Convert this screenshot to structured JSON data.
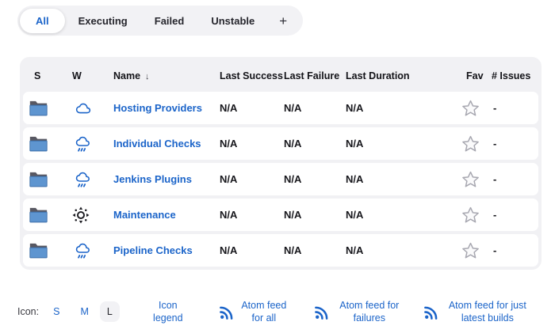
{
  "tabs": {
    "items": [
      {
        "label": "All",
        "active": true
      },
      {
        "label": "Executing",
        "active": false
      },
      {
        "label": "Failed",
        "active": false
      },
      {
        "label": "Unstable",
        "active": false
      }
    ],
    "add_label": "+"
  },
  "table": {
    "columns": [
      "S",
      "W",
      "Name",
      "Last Success",
      "Last Failure",
      "Last Duration",
      "Fav",
      "# Issues"
    ],
    "sort_indicator": "↓",
    "rows": [
      {
        "status": "folder",
        "weather": "cloud",
        "name": "Hosting Providers",
        "last_success": "N/A",
        "last_failure": "N/A",
        "last_duration": "N/A",
        "fav": "star-outline",
        "issues": "-"
      },
      {
        "status": "folder",
        "weather": "rain",
        "name": "Individual Checks",
        "last_success": "N/A",
        "last_failure": "N/A",
        "last_duration": "N/A",
        "fav": "star-outline",
        "issues": "-"
      },
      {
        "status": "folder",
        "weather": "rain",
        "name": "Jenkins Plugins",
        "last_success": "N/A",
        "last_failure": "N/A",
        "last_duration": "N/A",
        "fav": "star-outline",
        "issues": "-"
      },
      {
        "status": "folder",
        "weather": "sun",
        "name": "Maintenance",
        "last_success": "N/A",
        "last_failure": "N/A",
        "last_duration": "N/A",
        "fav": "star-outline",
        "issues": "-"
      },
      {
        "status": "folder",
        "weather": "rain",
        "name": "Pipeline Checks",
        "last_success": "N/A",
        "last_failure": "N/A",
        "last_duration": "N/A",
        "fav": "star-outline",
        "issues": "-"
      }
    ]
  },
  "footer": {
    "icon_size_label": "Icon:",
    "sizes": [
      {
        "label": "S",
        "active": false
      },
      {
        "label": "M",
        "active": false
      },
      {
        "label": "L",
        "active": true
      }
    ],
    "legend_label": "Icon legend",
    "feeds": [
      {
        "label": "Atom feed for all"
      },
      {
        "label": "Atom feed for failures"
      },
      {
        "label": "Atom feed for just latest builds"
      }
    ]
  },
  "colors": {
    "link_blue": "#1b64c9",
    "tab_bg": "#f2f2f5",
    "table_bg": "#f1f1f4",
    "active_pill": "#ffffff",
    "text_dark": "#1b1b22",
    "star_gray": "#a7a7b0",
    "weather_blue": "#1b64c9",
    "sun_dark": "#1c1c22",
    "folder_blue": "#5e95d0",
    "folder_dark": "#585862"
  }
}
